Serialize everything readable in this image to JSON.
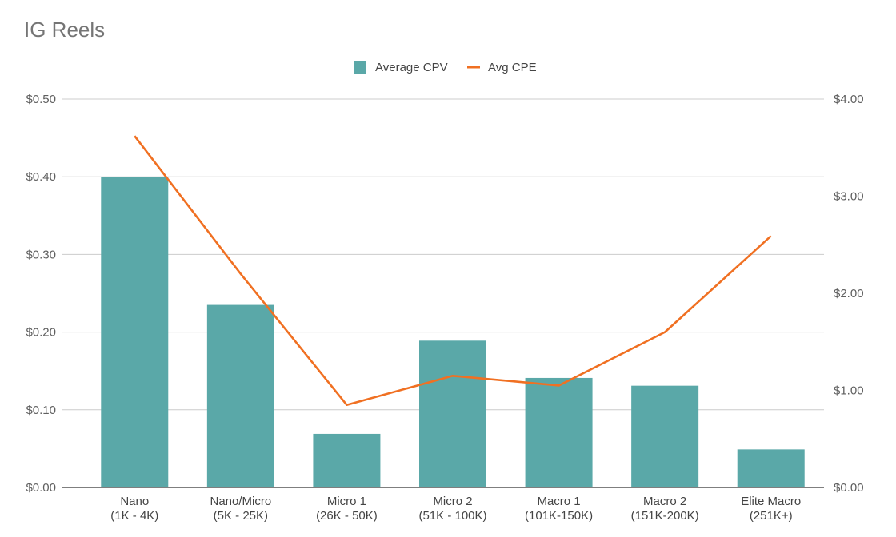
{
  "chart_data": {
    "type": "bar",
    "title": "IG Reels",
    "categories": [
      [
        "Nano",
        "(1K - 4K)"
      ],
      [
        "Nano/Micro",
        "(5K - 25K)"
      ],
      [
        "Micro 1",
        "(26K - 50K)"
      ],
      [
        "Micro 2",
        "(51K - 100K)"
      ],
      [
        "Macro 1",
        "(101K-150K)"
      ],
      [
        "Macro 2",
        "(151K-200K)"
      ],
      [
        "Elite Macro",
        "(251K+)"
      ]
    ],
    "series": [
      {
        "name": "Average CPV",
        "type": "bar",
        "axis": "left",
        "color": "#5aa8a8",
        "values": [
          0.4,
          0.235,
          0.069,
          0.189,
          0.141,
          0.131,
          0.049
        ]
      },
      {
        "name": "Avg CPE",
        "type": "line",
        "axis": "right",
        "color": "#f07022",
        "values": [
          3.62,
          2.2,
          0.85,
          1.15,
          1.05,
          1.6,
          2.59
        ]
      }
    ],
    "left_axis": {
      "min": 0,
      "max": 0.5,
      "ticks": [
        0,
        0.1,
        0.2,
        0.3,
        0.4,
        0.5
      ],
      "tick_labels": [
        "$0.00",
        "$0.10",
        "$0.20",
        "$0.30",
        "$0.40",
        "$0.50"
      ]
    },
    "right_axis": {
      "min": 0,
      "max": 4,
      "ticks": [
        0,
        1,
        2,
        3,
        4
      ],
      "tick_labels": [
        "$0.00",
        "$1.00",
        "$2.00",
        "$3.00",
        "$4.00"
      ]
    },
    "legend_position": "top",
    "grid": true
  }
}
